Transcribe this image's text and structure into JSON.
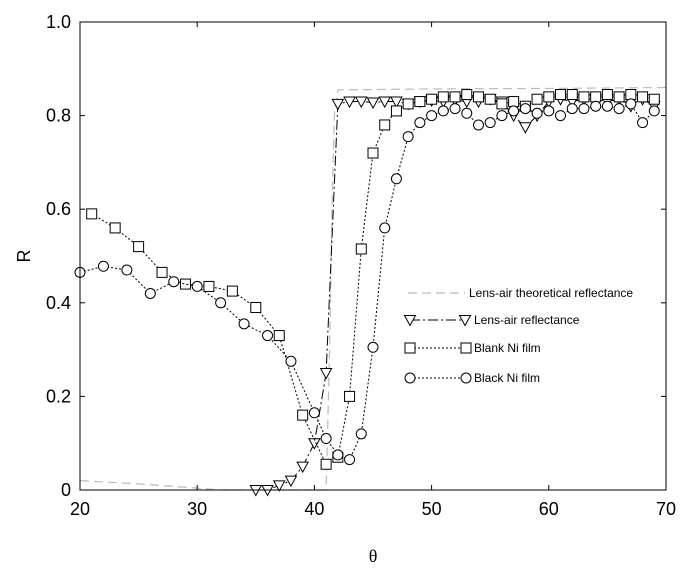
{
  "chart_data": {
    "type": "line",
    "xlabel": "θ",
    "ylabel": "R",
    "xlim": [
      20,
      70
    ],
    "ylim": [
      0,
      1.0
    ],
    "x_ticks": [
      {
        "value": 20,
        "label": "20"
      },
      {
        "value": 30,
        "label": "30"
      },
      {
        "value": 40,
        "label": "40"
      },
      {
        "value": 50,
        "label": "50"
      },
      {
        "value": 60,
        "label": "60"
      },
      {
        "value": 70,
        "label": "70"
      }
    ],
    "y_ticks": [
      {
        "value": 0,
        "label": "0"
      },
      {
        "value": 0.2,
        "label": "0.2"
      },
      {
        "value": 0.4,
        "label": "0.4"
      },
      {
        "value": 0.6,
        "label": "0.6"
      },
      {
        "value": 0.8,
        "label": "0.8"
      },
      {
        "value": 1.0,
        "label": "1.0"
      }
    ],
    "grid": false,
    "legend_position": "right",
    "series": [
      {
        "name": "Lens-air theoretical reflectance",
        "style": "dashed",
        "marker": "none",
        "color": "#bbbbbb",
        "x": [
          20,
          25,
          30,
          32,
          35,
          41.0,
          41.3,
          41.5,
          41.7,
          42,
          50,
          60,
          70
        ],
        "y": [
          0.02,
          0.013,
          0.004,
          0.0,
          0.0,
          0.0,
          0.3,
          0.6,
          0.8,
          0.855,
          0.857,
          0.858,
          0.86
        ]
      },
      {
        "name": "Lens-air reflectance",
        "style": "dashdot",
        "marker": "triangle-down",
        "color": "#000000",
        "x": [
          35,
          36,
          37,
          38,
          39,
          40,
          41,
          42,
          43,
          44,
          45,
          46,
          47,
          48,
          49,
          50,
          51,
          52,
          53,
          54,
          55,
          56,
          57,
          58,
          59,
          60,
          61,
          62,
          63,
          64,
          65,
          66,
          67,
          68,
          69
        ],
        "y": [
          0.0,
          0.0,
          0.01,
          0.02,
          0.05,
          0.1,
          0.25,
          0.825,
          0.83,
          0.83,
          0.828,
          0.83,
          0.83,
          0.825,
          0.83,
          0.832,
          0.83,
          0.833,
          0.83,
          0.83,
          0.835,
          0.83,
          0.8,
          0.775,
          0.8,
          0.83,
          0.835,
          0.83,
          0.835,
          0.835,
          0.83,
          0.835,
          0.82,
          0.835,
          0.82
        ]
      },
      {
        "name": "Blank Ni film",
        "style": "dotted",
        "marker": "square",
        "color": "#000000",
        "x": [
          21,
          23,
          25,
          27,
          29,
          31,
          33,
          35,
          37,
          39,
          41,
          42,
          43,
          44,
          45,
          46,
          47,
          48,
          49,
          50,
          51,
          52,
          53,
          54,
          55,
          56,
          57,
          58,
          59,
          60,
          61,
          62,
          63,
          64,
          65,
          66,
          67,
          68,
          69
        ],
        "y": [
          0.59,
          0.56,
          0.52,
          0.465,
          0.44,
          0.435,
          0.425,
          0.39,
          0.33,
          0.16,
          0.055,
          0.07,
          0.2,
          0.515,
          0.72,
          0.78,
          0.81,
          0.825,
          0.83,
          0.835,
          0.84,
          0.84,
          0.845,
          0.84,
          0.835,
          0.825,
          0.83,
          0.82,
          0.835,
          0.84,
          0.845,
          0.845,
          0.84,
          0.84,
          0.845,
          0.84,
          0.845,
          0.84,
          0.835
        ]
      },
      {
        "name": "Black Ni film",
        "style": "dotted",
        "marker": "circle",
        "color": "#000000",
        "x": [
          20,
          22,
          24,
          26,
          28,
          30,
          32,
          34,
          36,
          38,
          40,
          41,
          42,
          43,
          44,
          45,
          46,
          47,
          48,
          49,
          50,
          51,
          52,
          53,
          54,
          55,
          56,
          57,
          58,
          59,
          60,
          61,
          62,
          63,
          64,
          65,
          66,
          67,
          68,
          69
        ],
        "y": [
          0.465,
          0.478,
          0.47,
          0.42,
          0.445,
          0.435,
          0.4,
          0.355,
          0.33,
          0.275,
          0.165,
          0.11,
          0.075,
          0.065,
          0.12,
          0.305,
          0.56,
          0.665,
          0.755,
          0.785,
          0.8,
          0.81,
          0.815,
          0.805,
          0.78,
          0.785,
          0.8,
          0.81,
          0.815,
          0.805,
          0.81,
          0.8,
          0.815,
          0.815,
          0.82,
          0.82,
          0.815,
          0.825,
          0.785,
          0.81
        ]
      }
    ]
  }
}
